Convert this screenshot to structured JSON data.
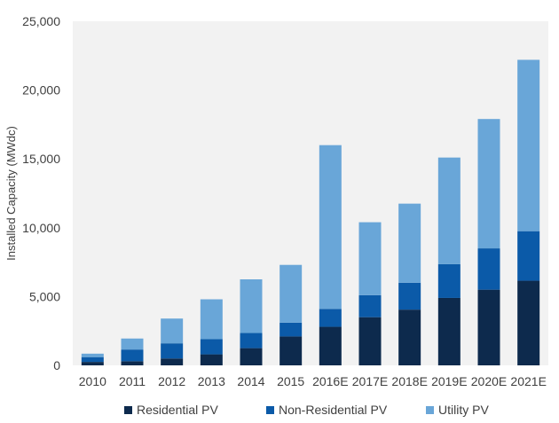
{
  "chart_data": {
    "type": "bar",
    "stacked": true,
    "title": "",
    "xlabel": "",
    "ylabel": "Installed Capacity (MWdc)",
    "ylim": [
      0,
      25000
    ],
    "yticks": [
      0,
      5000,
      10000,
      15000,
      20000,
      25000
    ],
    "ytick_labels": [
      "0",
      "5,000",
      "10,000",
      "15,000",
      "20,000",
      "25,000"
    ],
    "grid": false,
    "legend_position": "bottom",
    "categories": [
      "2010",
      "2011",
      "2012",
      "2013",
      "2014",
      "2015",
      "2016E",
      "2017E",
      "2018E",
      "2019E",
      "2020E",
      "2021E"
    ],
    "series": [
      {
        "name": "Residential PV",
        "color": "#0d2a4d",
        "values": [
          250,
          300,
          500,
          800,
          1250,
          2100,
          2800,
          3500,
          4050,
          4900,
          5500,
          6150
        ]
      },
      {
        "name": "Non-Residential PV",
        "color": "#0b5aa8",
        "values": [
          350,
          850,
          1100,
          1100,
          1100,
          1000,
          1300,
          1600,
          1950,
          2450,
          3000,
          3600
        ]
      },
      {
        "name": "Utility PV",
        "color": "#69a6d8",
        "values": [
          250,
          800,
          1800,
          2900,
          3900,
          4200,
          11900,
          5300,
          5750,
          7750,
          9400,
          12450
        ]
      }
    ]
  }
}
